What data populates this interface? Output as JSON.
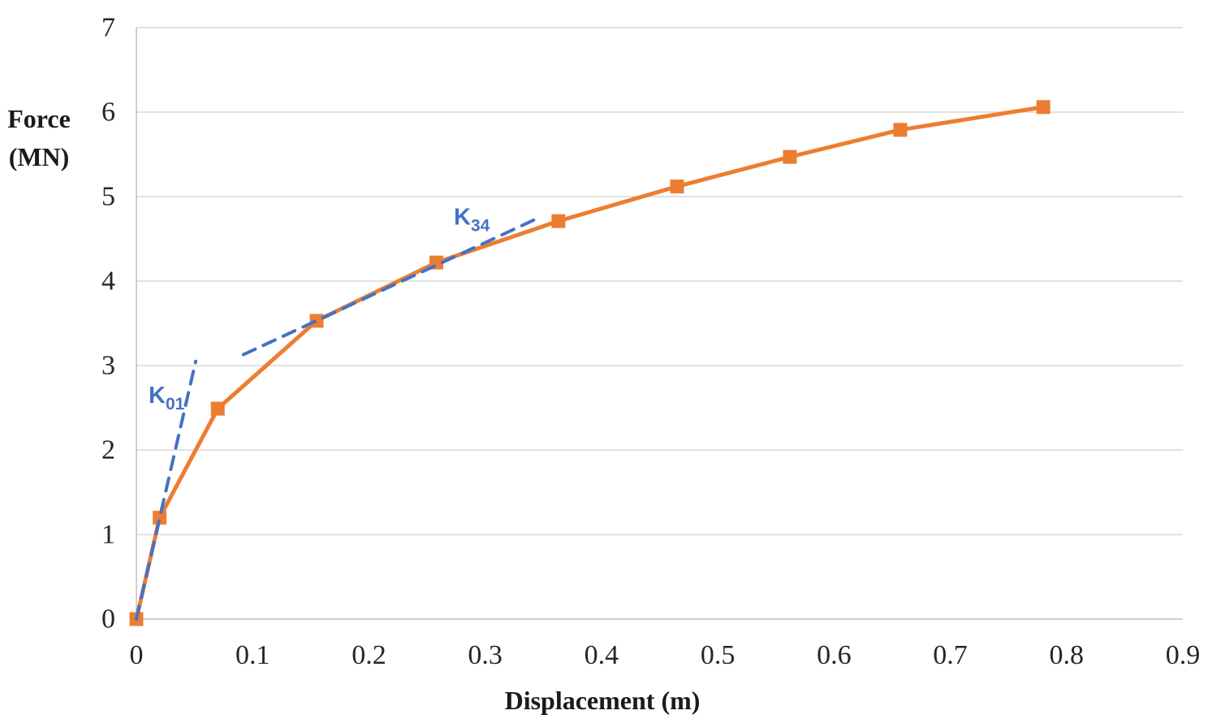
{
  "chart_data": {
    "type": "line",
    "title": "",
    "xlabel": "Displacement (m)",
    "ylabel_lines": [
      "Force",
      "(MN)"
    ],
    "xlim": [
      0,
      0.9
    ],
    "ylim": [
      0,
      7
    ],
    "grid": "horizontal",
    "legend": "none",
    "x_tick_values": [
      0,
      0.1,
      0.2,
      0.3,
      0.4,
      0.5,
      0.6,
      0.7,
      0.8,
      0.9
    ],
    "x_tick_labels": [
      "0",
      "0.1",
      "0.2",
      "0.3",
      "0.4",
      "0.5",
      "0.6",
      "0.7",
      "0.8",
      "0.9"
    ],
    "y_tick_values": [
      0,
      1,
      2,
      3,
      4,
      5,
      6,
      7
    ],
    "y_tick_labels": [
      "0",
      "1",
      "2",
      "3",
      "4",
      "5",
      "6",
      "7"
    ],
    "series": [
      {
        "name": "force-displacement-curve",
        "color": "#ED7D31",
        "marker": "square",
        "marker_size": 17,
        "line_width": 5,
        "points": [
          [
            0,
            0
          ],
          [
            0.02,
            1.2
          ],
          [
            0.07,
            2.49
          ],
          [
            0.155,
            3.53
          ],
          [
            0.258,
            4.22
          ],
          [
            0.363,
            4.71
          ],
          [
            0.465,
            5.12
          ],
          [
            0.562,
            5.47
          ],
          [
            0.657,
            5.79
          ],
          [
            0.78,
            6.06
          ]
        ]
      }
    ],
    "annotations": [
      {
        "name": "K01",
        "text": "K",
        "subscript": "01",
        "color": "#4472C4",
        "style": "dashed",
        "line": [
          [
            0,
            0
          ],
          [
            0.051,
            3.05
          ]
        ],
        "label_pos": [
          0.0105,
          2.56
        ]
      },
      {
        "name": "K34",
        "text": "K",
        "subscript": "34",
        "color": "#4472C4",
        "style": "dashed",
        "line": [
          [
            0.092,
            3.13
          ],
          [
            0.343,
            4.73
          ]
        ],
        "label_pos": [
          0.273,
          4.67
        ]
      }
    ],
    "colors": {
      "grid": "#D9D9D9",
      "axis": "#BFBFBF",
      "tick_text": "#262626",
      "title_text": "#1A1A1A",
      "series_orange": "#ED7D31",
      "annotation_blue": "#4472C4"
    }
  }
}
